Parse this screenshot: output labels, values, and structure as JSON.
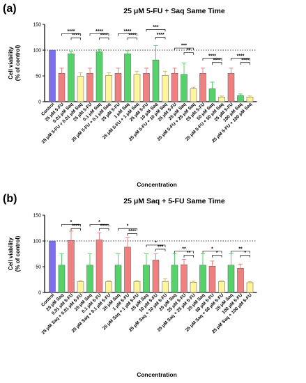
{
  "chart_data": [
    {
      "panel": "(a)",
      "type": "bar",
      "title": "25 μM 5-FU + Saq Same Time",
      "xlabel": "Concentration",
      "ylabel": [
        "Cell viability",
        "(% of control)"
      ],
      "ylim": [
        0,
        150
      ],
      "yticks": [
        "0",
        "50",
        "100",
        "150"
      ],
      "reference_line": 100,
      "categories": [
        "Control",
        "25 μM 5-FU",
        "0.01 μM Saq",
        "25 μM 5-FU + 0.01 μM Saq",
        "25 μM 5-FU",
        "0.1 μM Saq",
        "25 μM 5-FU + 0.1 μM Saq",
        "25 μM 5-FU",
        "1 μM Saq",
        "25 μM 5-FU + 1 μM Saq",
        "25 μM 5-FU",
        "10 μM Saq",
        "25 μM 5-FU + 10 μM Saq",
        "25 μM 5-FU",
        "25 μM Saq",
        "25 μM 5-FU + 25 μM Saq",
        "25 μM 5-FU",
        "50 μM Saq",
        "25 μM 5-FU + 50 μM Saq",
        "25 μM 5-FU",
        "100 μM Saq",
        "25 μM 5-FU + 100 μM Saq"
      ],
      "values": [
        100,
        55,
        93,
        49,
        55,
        97,
        51,
        55,
        93,
        53,
        55,
        81,
        51,
        55,
        53,
        25,
        55,
        25,
        9,
        55,
        12,
        9
      ],
      "errors": [
        0,
        10,
        5,
        7,
        10,
        5,
        5,
        10,
        6,
        6,
        10,
        28,
        8,
        10,
        22,
        3,
        10,
        13,
        2,
        10,
        3,
        2
      ],
      "colors": [
        "#7b6ff0",
        "#f08080",
        "#55d26a",
        "#fff59d",
        "#f08080",
        "#55d26a",
        "#fff59d",
        "#f08080",
        "#55d26a",
        "#fff59d",
        "#f08080",
        "#55d26a",
        "#fff59d",
        "#f08080",
        "#55d26a",
        "#fff59d",
        "#f08080",
        "#55d26a",
        "#fff59d",
        "#f08080",
        "#55d26a",
        "#fff59d"
      ],
      "significance": [
        {
          "from": 1,
          "to": 3,
          "label": "****",
          "level": 132
        },
        {
          "from": 2,
          "to": 3,
          "label": "****",
          "level": 124
        },
        {
          "from": 4,
          "to": 6,
          "label": "****",
          "level": 132
        },
        {
          "from": 5,
          "to": 6,
          "label": "****",
          "level": 124
        },
        {
          "from": 7,
          "to": 9,
          "label": "****",
          "level": 132
        },
        {
          "from": 8,
          "to": 9,
          "label": "****",
          "level": 124
        },
        {
          "from": 10,
          "to": 12,
          "label": "***",
          "level": 140
        },
        {
          "from": 11,
          "to": 12,
          "label": "****",
          "level": 125
        },
        {
          "from": 13,
          "to": 15,
          "label": "***",
          "level": 104
        },
        {
          "from": 14,
          "to": 15,
          "label": "**",
          "level": 95
        },
        {
          "from": 16,
          "to": 18,
          "label": "****",
          "level": 84
        },
        {
          "from": 17,
          "to": 18,
          "label": "****",
          "level": 76
        },
        {
          "from": 19,
          "to": 21,
          "label": "****",
          "level": 84
        },
        {
          "from": 20,
          "to": 21,
          "label": "****",
          "level": 76
        }
      ],
      "legend": "none",
      "grid": false
    },
    {
      "panel": "(b)",
      "type": "bar",
      "title": "25 μM Saq + 5-FU Same Time",
      "xlabel": "Concentration",
      "ylabel": [
        "Cell viability",
        "(% of control)"
      ],
      "ylim": [
        0,
        150
      ],
      "yticks": [
        "0",
        "50",
        "100",
        "150"
      ],
      "reference_line": 100,
      "categories": [
        "Control",
        "25 μM Saq",
        "0.01 μM 5-FU",
        "25 μM Saq + 0.01 μM 5-FU",
        "25 μM Saq",
        "0.1 μM 5-FU",
        "25 μM Saq + 0.1 μM 5-FU",
        "25 μM Saq",
        "1 μM 5-FU",
        "25 μM Saq + 1 μM 5-FU",
        "25 μM Saq",
        "10 μM 5-FU",
        "25 μM Saq + 10 μM 5-FU",
        "25 μM Saq",
        "25 μM 5-FU",
        "25 μM Saq + 25 μM 5-FU",
        "25 μM Saq",
        "50 μM 5-FU",
        "25 μM Saq + 50 μM 5-FU",
        "25 μM Saq",
        "100 μM 5-FU",
        "25 μM Saq + 100 μM 5-FU"
      ],
      "values": [
        100,
        53,
        101,
        21,
        53,
        102,
        21,
        53,
        88,
        21,
        53,
        63,
        21,
        53,
        54,
        20,
        53,
        51,
        21,
        53,
        47,
        19
      ],
      "errors": [
        0,
        22,
        18,
        2,
        22,
        14,
        2,
        22,
        18,
        2,
        22,
        12,
        6,
        22,
        10,
        2,
        22,
        10,
        2,
        22,
        8,
        2
      ],
      "colors": [
        "#7b6ff0",
        "#55d26a",
        "#f08080",
        "#fff59d",
        "#55d26a",
        "#f08080",
        "#fff59d",
        "#55d26a",
        "#f08080",
        "#fff59d",
        "#55d26a",
        "#f08080",
        "#fff59d",
        "#55d26a",
        "#f08080",
        "#fff59d",
        "#55d26a",
        "#f08080",
        "#fff59d",
        "#55d26a",
        "#f08080",
        "#fff59d"
      ],
      "significance": [
        {
          "from": 1,
          "to": 3,
          "label": "*",
          "level": 132
        },
        {
          "from": 2,
          "to": 3,
          "label": "****",
          "level": 124
        },
        {
          "from": 4,
          "to": 6,
          "label": "*",
          "level": 132
        },
        {
          "from": 5,
          "to": 6,
          "label": "****",
          "level": 124
        },
        {
          "from": 7,
          "to": 9,
          "label": "*",
          "level": 124
        },
        {
          "from": 8,
          "to": 9,
          "label": "****",
          "level": 114
        },
        {
          "from": 10,
          "to": 12,
          "label": "*",
          "level": 92
        },
        {
          "from": 11,
          "to": 12,
          "label": "***",
          "level": 84
        },
        {
          "from": 13,
          "to": 15,
          "label": "**",
          "level": 80
        },
        {
          "from": 14,
          "to": 15,
          "label": "**",
          "level": 72
        },
        {
          "from": 16,
          "to": 18,
          "label": "*",
          "level": 80
        },
        {
          "from": 17,
          "to": 18,
          "label": "*",
          "level": 72
        },
        {
          "from": 19,
          "to": 21,
          "label": "**",
          "level": 80
        },
        {
          "from": 20,
          "to": 21,
          "label": "*",
          "level": 72
        }
      ],
      "legend": "none",
      "grid": false
    }
  ]
}
